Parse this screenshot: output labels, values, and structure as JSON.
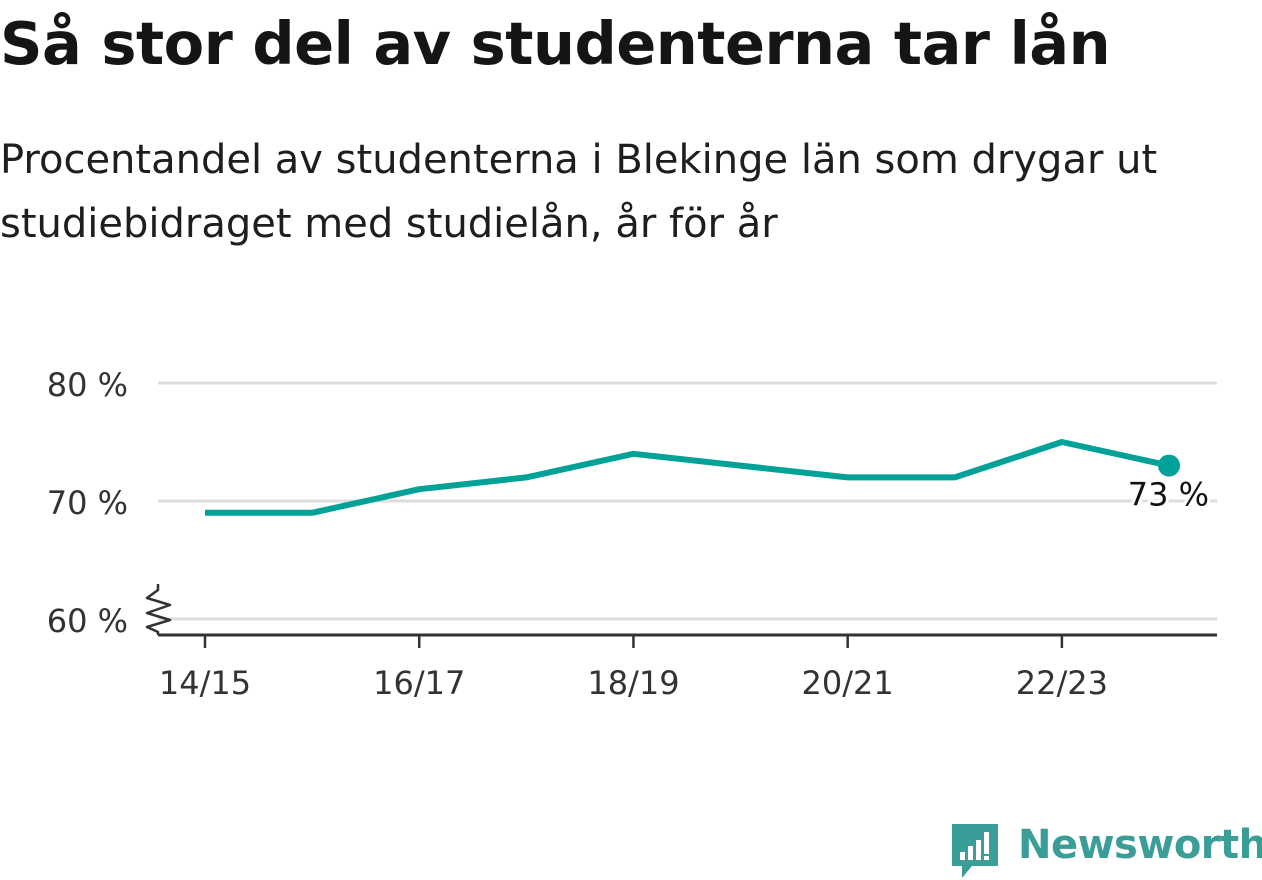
{
  "title": "Så stor del av studenterna tar lån",
  "subtitle": "Procentandel av studenterna i Blekinge län som drygar ut studiebidraget med studielån, år för år",
  "brand": {
    "name": "Newsworthy",
    "icon": "newsworthy-logo-icon"
  },
  "colors": {
    "line": "#00a298",
    "grid": "#dddddd",
    "axis": "#333333",
    "text": "#1a1a1a",
    "brand": "#3a9d98"
  },
  "chart_data": {
    "type": "line",
    "title": "Så stor del av studenterna tar lån",
    "subtitle": "Procentandel av studenterna i Blekinge län som drygar ut studiebidraget med studielån, år för år",
    "xlabel": "",
    "ylabel": "",
    "x": [
      "14/15",
      "15/16",
      "16/17",
      "17/18",
      "18/19",
      "19/20",
      "20/21",
      "21/22",
      "22/23",
      "23/24"
    ],
    "x_tick_labels": [
      "14/15",
      "16/17",
      "18/19",
      "20/21",
      "22/23"
    ],
    "y_tick_labels": [
      "60 %",
      "70 %",
      "80 %"
    ],
    "ylim": [
      60,
      80
    ],
    "axis_break": true,
    "grid": true,
    "series": [
      {
        "values": [
          69,
          69,
          71,
          72,
          74,
          73,
          72,
          72,
          75,
          73
        ]
      }
    ],
    "end_label": "73 %"
  }
}
